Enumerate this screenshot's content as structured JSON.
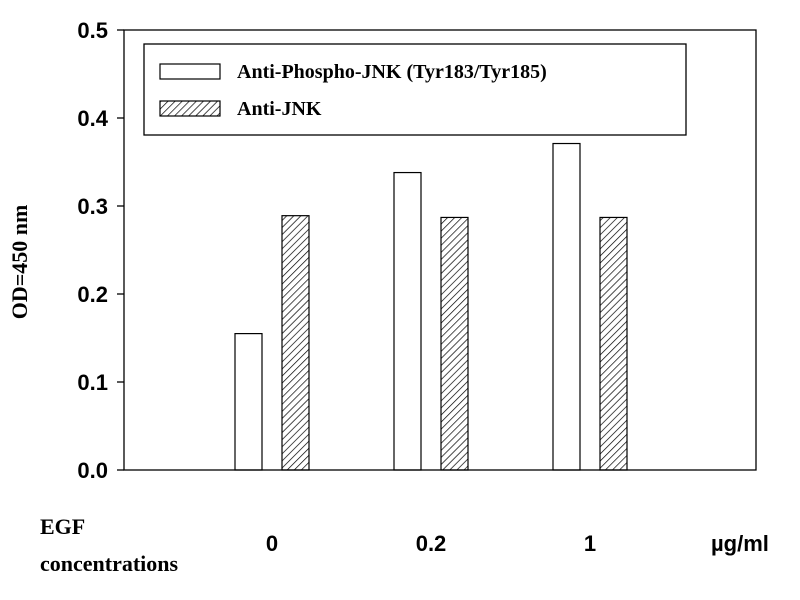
{
  "chart_data": {
    "type": "bar",
    "categories": [
      "0",
      "0.2",
      "1"
    ],
    "series": [
      {
        "name": "Anti-Phospho-JNK (Tyr183/Tyr185)",
        "values": [
          0.155,
          0.338,
          0.371
        ],
        "fill": "#ffffff",
        "pattern": "none"
      },
      {
        "name": "Anti-JNK",
        "values": [
          0.289,
          0.287,
          0.287
        ],
        "fill": "#ffffff",
        "pattern": "diagonal-hatch"
      }
    ],
    "ylabel": "OD=450 nm",
    "ylim": [
      0,
      0.5
    ],
    "yticks": [
      "0.0",
      "0.1",
      "0.2",
      "0.3",
      "0.4",
      "0.5"
    ],
    "xlabel_line1": "EGF",
    "xlabel_line2": "concentrations",
    "x_unit": "µg/ml",
    "legend_position": "top-right",
    "grid": false
  }
}
